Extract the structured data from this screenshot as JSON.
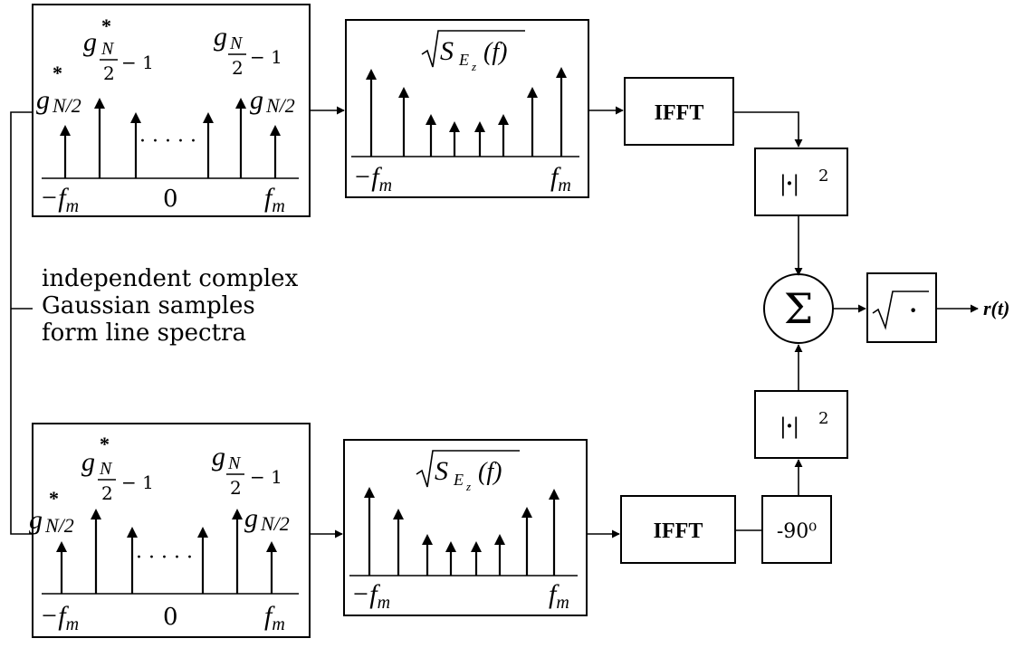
{
  "independent_samples": [
    "independent complex",
    "Gaussian samples",
    "form line spectra"
  ],
  "spectrum": {
    "g_sym": "g",
    "star": "*",
    "N_over_2": "N/2",
    "N": "N",
    "two": "2",
    "minus_one": "− 1",
    "dots": "· · · · ·",
    "minus_fm": "−f",
    "fm": "f",
    "m_sub": "m",
    "zero": "0"
  },
  "filter": {
    "sqrt_label": "S",
    "E_sub": "E",
    "z_sub": "z",
    "of_f": "(f)",
    "minus_fm": "−f",
    "fm": "f",
    "m_sub": "m"
  },
  "blocks": {
    "ifft": "IFFT",
    "abs_sq_upper": "|·|",
    "abs_sq_lower": "|·|",
    "exp_two": "2",
    "sum": "Σ",
    "phase_shift": "-90⁰",
    "sqrt_dot": "·",
    "output": "r(t)"
  }
}
